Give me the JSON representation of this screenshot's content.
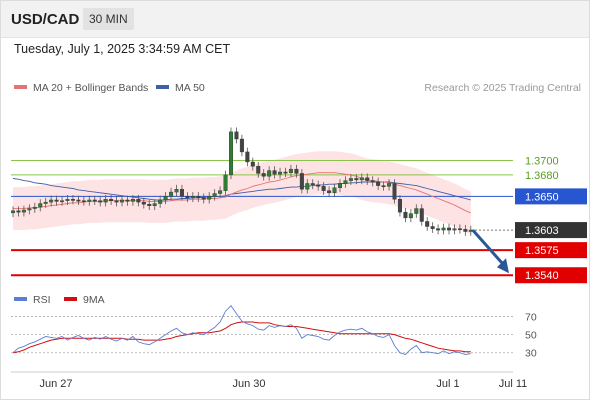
{
  "header": {
    "symbol": "USD/CAD",
    "timeframe": "30 MIN"
  },
  "datetime": "Tuesday, July 1, 2025 3:34:59 AM CET",
  "colors": {
    "up": "#2e7d32",
    "down": "#c62828",
    "candle_body": "#555555",
    "ma20": "#e57373",
    "ma50": "#3f5fa8",
    "bands": "#fde3e3",
    "support": "#e00000",
    "resistance": "#8bc34a",
    "pivot": "#2855d0",
    "last": "#333333",
    "rsi": "#5b7fd6",
    "rsi_ma": "#d01010",
    "arrow": "#2a5797"
  },
  "chart_data": [
    {
      "type": "candlestick",
      "legend": [
        {
          "name": "MA 20 + Bollinger Bands",
          "color": "#e57373"
        },
        {
          "name": "MA 50",
          "color": "#3f5fa8"
        }
      ],
      "credit": "Research © 2025 Trading Central",
      "x_ticks": [
        "Jun 27",
        "Jun 30",
        "Jul 1",
        "Jul 11"
      ],
      "ylim": [
        1.3525,
        1.379
      ],
      "levels": [
        {
          "label": "1.3700",
          "value": 1.37,
          "kind": "resistance"
        },
        {
          "label": "1.3680",
          "value": 1.368,
          "kind": "resistance"
        },
        {
          "label": "1.3650",
          "value": 1.365,
          "kind": "pivot"
        },
        {
          "label": "1.3603",
          "value": 1.3603,
          "kind": "last"
        },
        {
          "label": "1.3575",
          "value": 1.3575,
          "kind": "support"
        },
        {
          "label": "1.3540",
          "value": 1.354,
          "kind": "support"
        }
      ],
      "arrow": {
        "from": 1.3603,
        "to": 1.354
      },
      "close": [
        1.363,
        1.3628,
        1.3631,
        1.3633,
        1.3635,
        1.364,
        1.3642,
        1.3645,
        1.3643,
        1.3644,
        1.3646,
        1.3645,
        1.3644,
        1.3643,
        1.3645,
        1.3644,
        1.3642,
        1.3646,
        1.3644,
        1.3642,
        1.3645,
        1.3643,
        1.3646,
        1.3642,
        1.3639,
        1.3637,
        1.364,
        1.3645,
        1.365,
        1.3656,
        1.366,
        1.365,
        1.3648,
        1.365,
        1.3648,
        1.3646,
        1.365,
        1.3654,
        1.3658,
        1.368,
        1.374,
        1.373,
        1.3712,
        1.3698,
        1.3692,
        1.3682,
        1.3678,
        1.3686,
        1.3681,
        1.3684,
        1.3683,
        1.3688,
        1.3682,
        1.366,
        1.3668,
        1.3666,
        1.3664,
        1.3658,
        1.3655,
        1.3662,
        1.3668,
        1.3672,
        1.3675,
        1.3673,
        1.3676,
        1.3672,
        1.367,
        1.3665,
        1.3664,
        1.3668,
        1.3646,
        1.3628,
        1.362,
        1.3626,
        1.3633,
        1.3615,
        1.3608,
        1.3605,
        1.3603,
        1.3606,
        1.3603,
        1.3605,
        1.3604,
        1.3601,
        1.3603
      ],
      "ma20": [
        1.3633,
        1.3633,
        1.3633,
        1.3634,
        1.3634,
        1.3635,
        1.3636,
        1.3637,
        1.3638,
        1.3639,
        1.364,
        1.3641,
        1.3641,
        1.3642,
        1.3643,
        1.3643,
        1.3643,
        1.3644,
        1.3644,
        1.3644,
        1.3644,
        1.3644,
        1.3644,
        1.3644,
        1.3644,
        1.3643,
        1.3643,
        1.3643,
        1.3643,
        1.3644,
        1.3645,
        1.3645,
        1.3645,
        1.3646,
        1.3646,
        1.3646,
        1.3647,
        1.3647,
        1.3648,
        1.3649,
        1.3653,
        1.3656,
        1.3659,
        1.3661,
        1.3664,
        1.3666,
        1.3668,
        1.367,
        1.3671,
        1.3673,
        1.3675,
        1.3677,
        1.3679,
        1.368,
        1.3681,
        1.3682,
        1.3683,
        1.3683,
        1.3683,
        1.3683,
        1.3682,
        1.3681,
        1.368,
        1.3678,
        1.3675,
        1.3673,
        1.3672,
        1.3671,
        1.367,
        1.3669,
        1.3667,
        1.3665,
        1.3663,
        1.3661,
        1.3659,
        1.3656,
        1.3653,
        1.365,
        1.3647,
        1.3644,
        1.3641,
        1.3638,
        1.3634,
        1.363,
        1.3627
      ],
      "ma50": [
        1.3675,
        1.3674,
        1.3672,
        1.3671,
        1.3669,
        1.3668,
        1.3667,
        1.3665,
        1.3664,
        1.3663,
        1.3662,
        1.3661,
        1.3659,
        1.3658,
        1.3657,
        1.3656,
        1.3655,
        1.3654,
        1.3653,
        1.3652,
        1.3651,
        1.365,
        1.3649,
        1.3648,
        1.3647,
        1.3646,
        1.3645,
        1.3645,
        1.3645,
        1.3646,
        1.3646,
        1.3647,
        1.3647,
        1.3648,
        1.3648,
        1.3649,
        1.3649,
        1.365,
        1.365,
        1.3651,
        1.3653,
        1.3654,
        1.3655,
        1.3656,
        1.3657,
        1.3658,
        1.3659,
        1.366,
        1.366,
        1.3661,
        1.3662,
        1.3663,
        1.3663,
        1.3664,
        1.3664,
        1.3665,
        1.3666,
        1.3666,
        1.3667,
        1.3667,
        1.3668,
        1.3668,
        1.3669,
        1.3669,
        1.367,
        1.367,
        1.367,
        1.367,
        1.367,
        1.367,
        1.3669,
        1.3668,
        1.3667,
        1.3666,
        1.3665,
        1.3663,
        1.3661,
        1.3659,
        1.3657,
        1.3655,
        1.3653,
        1.3651,
        1.3649,
        1.3647,
        1.3645
      ]
    },
    {
      "type": "line",
      "legend": [
        {
          "name": "RSI",
          "color": "#5b7fd6"
        },
        {
          "name": "9MA",
          "color": "#d01010"
        }
      ],
      "y_ticks": [
        70,
        50,
        30
      ],
      "ylim": [
        12,
        85
      ],
      "rsi": [
        30,
        35,
        37,
        40,
        42,
        45,
        48,
        47,
        46,
        48,
        44,
        47,
        49,
        46,
        44,
        47,
        45,
        48,
        45,
        43,
        46,
        44,
        48,
        42,
        40,
        39,
        42,
        46,
        50,
        54,
        57,
        52,
        50,
        52,
        51,
        50,
        54,
        58,
        64,
        76,
        82,
        73,
        65,
        62,
        60,
        56,
        55,
        60,
        58,
        60,
        59,
        61,
        57,
        46,
        50,
        49,
        48,
        45,
        44,
        49,
        53,
        55,
        56,
        55,
        57,
        53,
        51,
        48,
        47,
        50,
        38,
        30,
        28,
        34,
        38,
        30,
        31,
        30,
        29,
        32,
        29,
        31,
        30,
        28,
        29
      ],
      "rsi_ma": [
        30,
        31,
        33,
        36,
        38,
        40,
        42,
        44,
        45,
        46,
        46,
        46,
        46,
        46,
        46,
        46,
        46,
        46,
        46,
        46,
        46,
        45,
        45,
        45,
        44,
        44,
        44,
        44,
        45,
        46,
        48,
        49,
        50,
        51,
        52,
        52,
        52,
        53,
        54,
        57,
        61,
        63,
        64,
        64,
        64,
        63,
        63,
        63,
        61,
        60,
        59,
        59,
        59,
        58,
        57,
        56,
        55,
        54,
        53,
        52,
        51,
        51,
        51,
        51,
        51,
        51,
        51,
        51,
        51,
        51,
        50,
        48,
        46,
        45,
        43,
        41,
        39,
        37,
        35,
        34,
        33,
        32,
        32,
        31,
        31
      ]
    }
  ]
}
